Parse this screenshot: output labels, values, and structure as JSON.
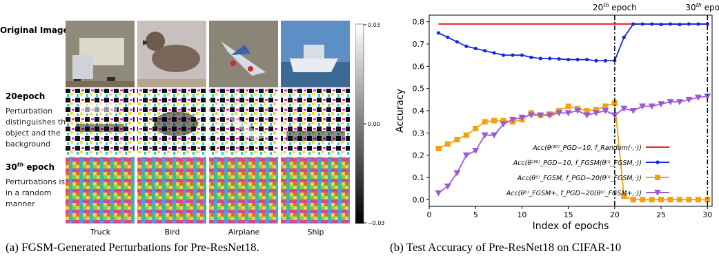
{
  "panel_a": {
    "row_titles": {
      "original": "Original Image",
      "epoch20_title": "20epoch",
      "epoch20_desc": [
        "Perturbation",
        "distinguishes the",
        "object and the",
        "background"
      ],
      "epoch30_title_base": "30",
      "epoch30_title_sup": "th",
      "epoch30_title_rest": " epoch",
      "epoch30_desc": [
        "Perturbations is",
        "in a random",
        "manner"
      ]
    },
    "columns": [
      "Truck",
      "Bird",
      "Airplane",
      "Ship"
    ],
    "colorbar": {
      "ticks": [
        "0.03",
        "0.00",
        "−0.03"
      ]
    },
    "caption": "(a)  FGSM-Generated Perturbations for Pre-ResNet18."
  },
  "panel_b": {
    "caption": "(b)  Test Accuracy of Pre-ResNet18 on CIFAR-10",
    "annotations": [
      {
        "x": 20,
        "base": "20",
        "sup": "th",
        "rest": " epoch"
      },
      {
        "x": 30,
        "base": "30",
        "sup": "th",
        "rest": " epoch"
      }
    ],
    "legend": [
      "Acc(θ⁽³⁰⁾_PGD−10, f_Random(·,·))",
      "Acc(θ⁽³⁰⁾_PGD−10, f_FGSM(θ⁽ⁱ⁾_FGSM,·))",
      "Acc(θ⁽ⁱ⁾_FGSM, f_PGD−20(θ⁽ⁱ⁾_FGSM,·))",
      "Acc(θ⁽ⁱ⁾_FGSM+, f_PGD−20(θ⁽ⁱ⁾_FGSM+,·))"
    ]
  },
  "chart_data": {
    "type": "line",
    "xlabel": "Index of epochs",
    "ylabel": "Accuracy",
    "xlim": [
      0,
      30.5
    ],
    "ylim": [
      -0.03,
      0.83
    ],
    "xticks": [
      0,
      5,
      10,
      15,
      20,
      25,
      30
    ],
    "yticks": [
      0.0,
      0.1,
      0.2,
      0.3,
      0.4,
      0.5,
      0.6,
      0.7,
      0.8
    ],
    "grid": false,
    "legend_position": "lower-right",
    "vlines": [
      20,
      30
    ],
    "series": [
      {
        "color": "#e8201a",
        "marker": "none",
        "x": [
          1,
          30
        ],
        "values": [
          0.79,
          0.79
        ]
      },
      {
        "color": "#1428e0",
        "marker": "circle",
        "x": [
          1,
          2,
          3,
          4,
          5,
          6,
          7,
          8,
          9,
          10,
          11,
          12,
          13,
          14,
          15,
          16,
          17,
          18,
          19,
          20,
          21,
          22,
          23,
          24,
          25,
          26,
          27,
          28,
          29,
          30
        ],
        "values": [
          0.75,
          0.73,
          0.71,
          0.69,
          0.68,
          0.67,
          0.66,
          0.65,
          0.65,
          0.65,
          0.64,
          0.635,
          0.635,
          0.633,
          0.63,
          0.63,
          0.63,
          0.625,
          0.625,
          0.625,
          0.73,
          0.79,
          0.79,
          0.79,
          0.788,
          0.79,
          0.788,
          0.79,
          0.79,
          0.79
        ]
      },
      {
        "color": "#f5a00f",
        "marker": "square",
        "x": [
          1,
          2,
          3,
          4,
          5,
          6,
          7,
          8,
          9,
          10,
          11,
          12,
          13,
          14,
          15,
          16,
          17,
          18,
          19,
          20,
          21,
          22,
          23,
          24,
          25,
          26,
          27,
          28,
          29,
          30
        ],
        "values": [
          0.23,
          0.25,
          0.27,
          0.29,
          0.32,
          0.35,
          0.355,
          0.355,
          0.35,
          0.36,
          0.39,
          0.38,
          0.385,
          0.4,
          0.42,
          0.41,
          0.4,
          0.405,
          0.42,
          0.435,
          0.015,
          0.0,
          0.0,
          0.0,
          0.0,
          0.0,
          0.0,
          0.0,
          0.0,
          0.0
        ]
      },
      {
        "color": "#9b59d9",
        "marker": "triangle-down",
        "x": [
          1,
          2,
          3,
          4,
          5,
          6,
          7,
          8,
          9,
          10,
          11,
          12,
          13,
          14,
          15,
          16,
          17,
          18,
          19,
          20,
          21,
          22,
          23,
          24,
          25,
          26,
          27,
          28,
          29,
          30
        ],
        "values": [
          0.03,
          0.06,
          0.12,
          0.2,
          0.22,
          0.29,
          0.29,
          0.34,
          0.36,
          0.37,
          0.38,
          0.38,
          0.38,
          0.39,
          0.39,
          0.4,
          0.38,
          0.39,
          0.4,
          0.38,
          0.41,
          0.4,
          0.42,
          0.42,
          0.43,
          0.44,
          0.44,
          0.45,
          0.46,
          0.465
        ]
      }
    ]
  }
}
